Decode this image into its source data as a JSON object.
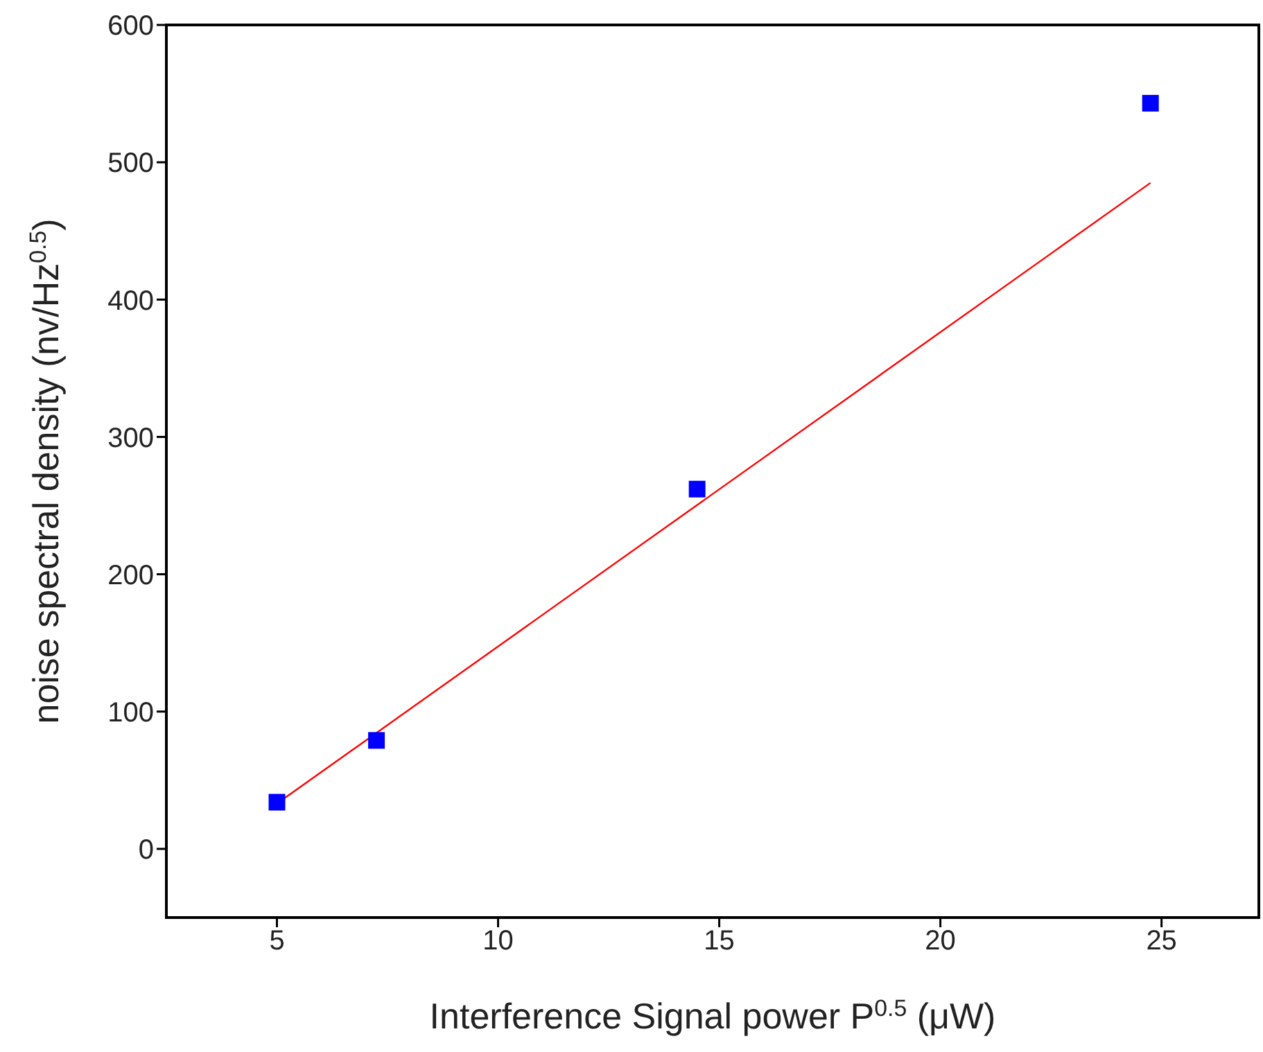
{
  "chart_data": {
    "type": "scatter",
    "xlabel": "Interference Signal power P$^{0.5}$ (μW)",
    "ylabel": "noise spectral density (nv/Hz$^{0.5}$)",
    "xlim": [
      2.5,
      27.2
    ],
    "xticks": [
      5,
      10,
      15,
      20,
      25
    ],
    "ylim": [
      -50,
      600
    ],
    "yticks": [
      0,
      100,
      200,
      300,
      400,
      500,
      600
    ],
    "grid": false,
    "legend": false,
    "series": [
      {
        "color": "#0000ff",
        "marker": "square",
        "x": [
          5,
          7.25,
          14.5,
          24.75
        ],
        "values": [
          34,
          79,
          262,
          543
        ]
      },
      {
        "type": "line",
        "color": "#ff0000",
        "marker": "none",
        "line_style": "solid",
        "x": [
          5,
          24.75
        ],
        "values": [
          33,
          485
        ]
      }
    ]
  }
}
